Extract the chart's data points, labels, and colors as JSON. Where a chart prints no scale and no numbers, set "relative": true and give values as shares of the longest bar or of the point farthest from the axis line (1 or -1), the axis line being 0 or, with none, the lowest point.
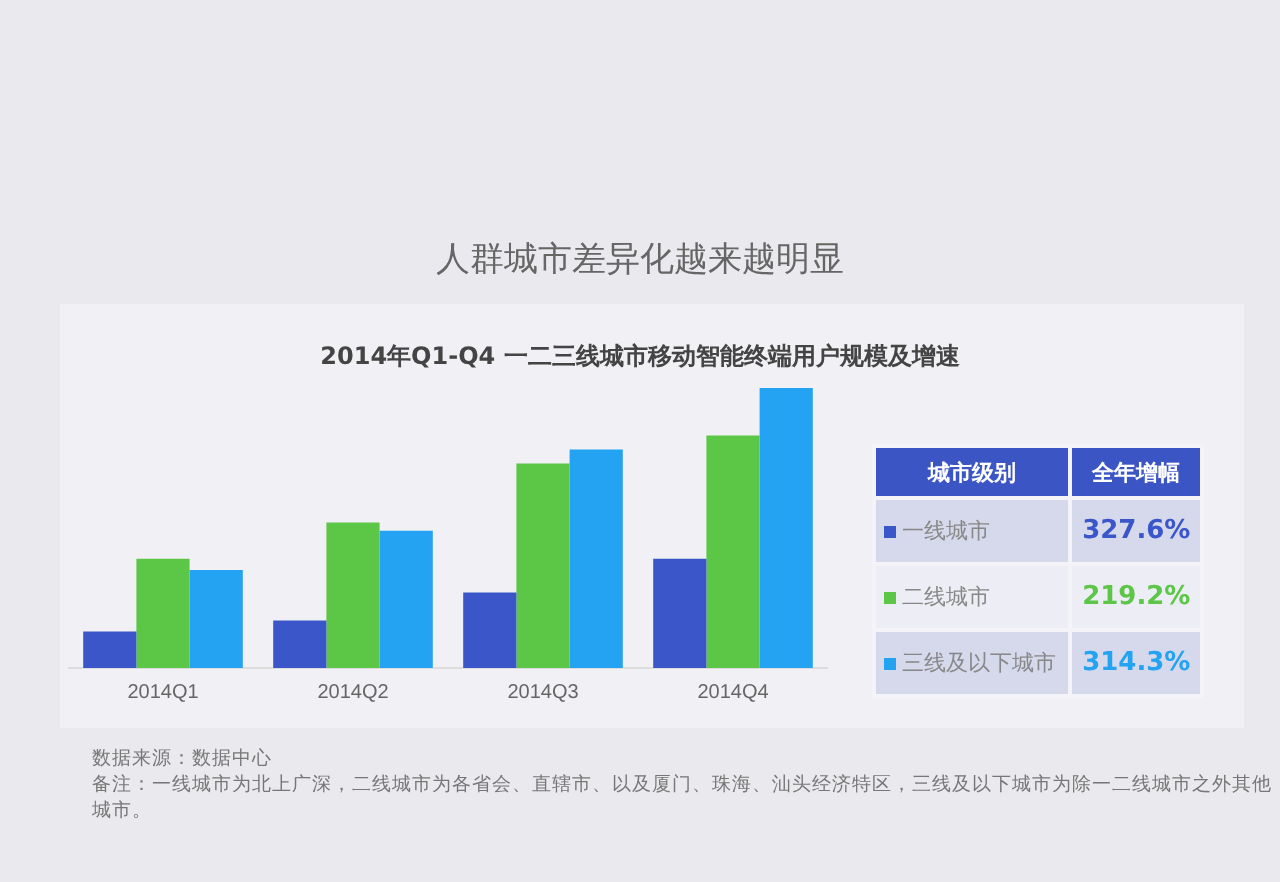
{
  "chart_data": {
    "type": "bar",
    "title": "人群城市差异化越来越明显",
    "subtitle": "2014年Q1-Q4 一二三线城市移动智能终端用户规模及增速",
    "relative": true,
    "categories": [
      "2014Q1",
      "2014Q2",
      "2014Q3",
      "2014Q4"
    ],
    "series": [
      {
        "name": "一线城市",
        "color": "#3a56c8",
        "values": [
          0.13,
          0.17,
          0.27,
          0.39
        ]
      },
      {
        "name": "二线城市",
        "color": "#5cc646",
        "values": [
          0.39,
          0.52,
          0.73,
          0.83
        ]
      },
      {
        "name": "三线及以下城市",
        "color": "#23a3f2",
        "values": [
          0.35,
          0.49,
          0.78,
          1
        ]
      }
    ],
    "legend": "right",
    "legend_title": "城市级别",
    "grid": false,
    "annotations": [
      "全年增幅",
      "327.6%",
      "219.2%",
      "314.3%",
      "数据来源：数据中心",
      "备注：一线城市为北上广深，二线城市为各省会、直辖市、以及厦门、珠海、汕头经济特区，三线及以下城市为除一二线城市之外其他城市。"
    ]
  }
}
